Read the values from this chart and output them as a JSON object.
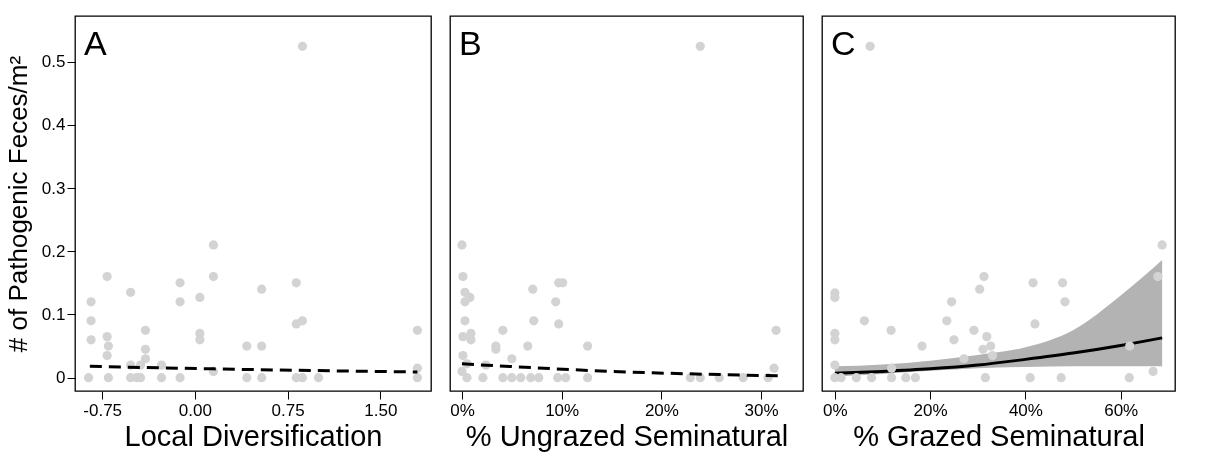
{
  "chart_data": [
    {
      "type": "scatter",
      "title": "A",
      "xlabel": "Local Diversification",
      "ylabel": "# of Pathogenic Feces/m²",
      "xlim": [
        -0.97,
        1.91
      ],
      "ylim": [
        -0.021,
        0.572
      ],
      "xticks": [
        {
          "value": -0.75,
          "label": "-0.75"
        },
        {
          "value": 0,
          "label": "0.00"
        },
        {
          "value": 0.75,
          "label": "0.75"
        },
        {
          "value": 1.5,
          "label": "1.50"
        }
      ],
      "yticks": [
        0,
        0.1,
        0.2,
        0.3,
        0.4,
        0.5
      ],
      "grid": false,
      "series": [
        {
          "marker": "circle",
          "color": "#d3d3d3",
          "x": [
            -0.86,
            -0.84,
            -0.84,
            -0.84,
            -0.71,
            -0.71,
            -0.7,
            -0.71,
            -0.7,
            -0.52,
            -0.52,
            -0.52,
            -0.47,
            -0.44,
            -0.44,
            -0.4,
            -0.4,
            -0.4,
            -0.27,
            -0.27,
            -0.12,
            -0.12,
            -0.12,
            0.04,
            0.04,
            0.04,
            0.15,
            0.15,
            0.15,
            0.42,
            0.42,
            0.54,
            0.54,
            0.54,
            0.82,
            0.82,
            0.82,
            0.87,
            0.87,
            0.87,
            1.0,
            1.8,
            1.8,
            1.8
          ],
          "values": [
            0,
            0.12,
            0.09,
            0.06,
            0.16,
            0.065,
            0.05,
            0.035,
            0,
            0.135,
            0.02,
            0,
            0,
            0.02,
            0,
            0.075,
            0.045,
            0.03,
            0.02,
            0,
            0.15,
            0.12,
            0,
            0.127,
            0.07,
            0.06,
            0.21,
            0.16,
            0.01,
            0.05,
            0,
            0.14,
            0.05,
            0,
            0.15,
            0.085,
            0,
            0.524,
            0.09,
            0,
            0,
            0.075,
            0.015,
            0
          ]
        },
        {
          "type": "line",
          "color": "#000000",
          "line_style": "dashed",
          "x": [
            -0.85,
            0.15,
            1.8
          ],
          "values": [
            0.018,
            0.014,
            0.009
          ]
        }
      ]
    },
    {
      "type": "scatter",
      "title": "B",
      "xlabel": "% Ungrazed Seminatural",
      "xlim": [
        -1.2,
        34.2
      ],
      "ylim": [
        -0.021,
        0.572
      ],
      "tick_labels": "x",
      "xticks": [
        {
          "value": 0,
          "label": "0%"
        },
        {
          "value": 10,
          "label": "10%"
        },
        {
          "value": 20,
          "label": "20%"
        },
        {
          "value": 30,
          "label": "30%"
        }
      ],
      "grid": false,
      "series": [
        {
          "marker": "circle",
          "color": "#d3d3d3",
          "x": [
            0,
            0.1,
            0.3,
            0.8,
            0.3,
            0.3,
            0.1,
            0.9,
            0.9,
            0.1,
            0.5,
            0,
            0.5,
            2.1,
            2.4,
            3.4,
            3.4,
            4.1,
            4.1,
            5.0,
            5.0,
            5.9,
            6.6,
            7.1,
            7.2,
            6.9,
            7.7,
            9.4,
            9.7,
            10.1,
            9.7,
            9.6,
            10.4,
            12.6,
            12.6,
            22.9,
            23.9,
            23.9,
            25.8,
            28.2,
            30.7,
            31.3,
            31.5
          ],
          "values": [
            0.21,
            0.16,
            0.135,
            0.127,
            0.12,
            0.09,
            0.065,
            0.07,
            0.06,
            0.035,
            0.022,
            0.01,
            0,
            0,
            0.02,
            0.05,
            0.045,
            0.075,
            0,
            0.03,
            0,
            0,
            0.05,
            0.14,
            0.09,
            0,
            0,
            0.12,
            0.15,
            0.15,
            0.085,
            0,
            0,
            0.05,
            0,
            0,
            0.524,
            0,
            0,
            0,
            0,
            0.015,
            0.075
          ]
        },
        {
          "type": "line",
          "color": "#000000",
          "line_style": "dashed",
          "x": [
            0,
            15,
            32
          ],
          "values": [
            0.022,
            0.01,
            0.003
          ]
        }
      ]
    },
    {
      "type": "scatter",
      "title": "C",
      "xlabel": "% Grazed Seminatural",
      "xlim": [
        -2.7,
        71.4
      ],
      "ylim": [
        -0.021,
        0.572
      ],
      "tick_labels": "x",
      "xticks": [
        {
          "value": 0,
          "label": "0%"
        },
        {
          "value": 20,
          "label": "20%"
        },
        {
          "value": 40,
          "label": "40%"
        },
        {
          "value": 60,
          "label": "60%"
        }
      ],
      "grid": false,
      "series": [
        {
          "type": "line",
          "color": "#000000",
          "line_style": "solid",
          "x": [
            0,
            10,
            20,
            30,
            40,
            50,
            60,
            68.7
          ],
          "values": [
            0.007,
            0.01,
            0.014,
            0.02,
            0.029,
            0.039,
            0.051,
            0.063
          ],
          "lower": [
            0.002,
            0.006,
            0.011,
            0.015,
            0.017,
            0.018,
            0.018,
            0.018
          ],
          "upper": [
            0.018,
            0.021,
            0.027,
            0.036,
            0.048,
            0.075,
            0.13,
            0.186
          ]
        },
        {
          "marker": "circle",
          "color": "#d3d3d3",
          "x": [
            0,
            0,
            0,
            0,
            0,
            0,
            1.3,
            4.5,
            6.2,
            7.4,
            7.7,
            11.8,
            11.9,
            11.9,
            14.9,
            16.9,
            18.3,
            23.5,
            24.5,
            25.0,
            27.1,
            29.2,
            30.4,
            31.3,
            31.1,
            31.9,
            32.7,
            33.1,
            31.6,
            41.0,
            41.6,
            42.0,
            47.5,
            47.8,
            48.3,
            61.8,
            61.9,
            66.8,
            67.8,
            68.7
          ],
          "values": [
            0.134,
            0.127,
            0.07,
            0.06,
            0.02,
            0,
            0,
            0,
            0.09,
            0.524,
            0,
            0.075,
            0.015,
            0,
            0,
            0,
            0.05,
            0.09,
            0.12,
            0.06,
            0.03,
            0.075,
            0.14,
            0.16,
            0.045,
            0.065,
            0.05,
            0.035,
            0,
            0,
            0.15,
            0.085,
            0,
            0.15,
            0.12,
            0,
            0.05,
            0.01,
            0.16,
            0.21
          ]
        }
      ]
    }
  ]
}
